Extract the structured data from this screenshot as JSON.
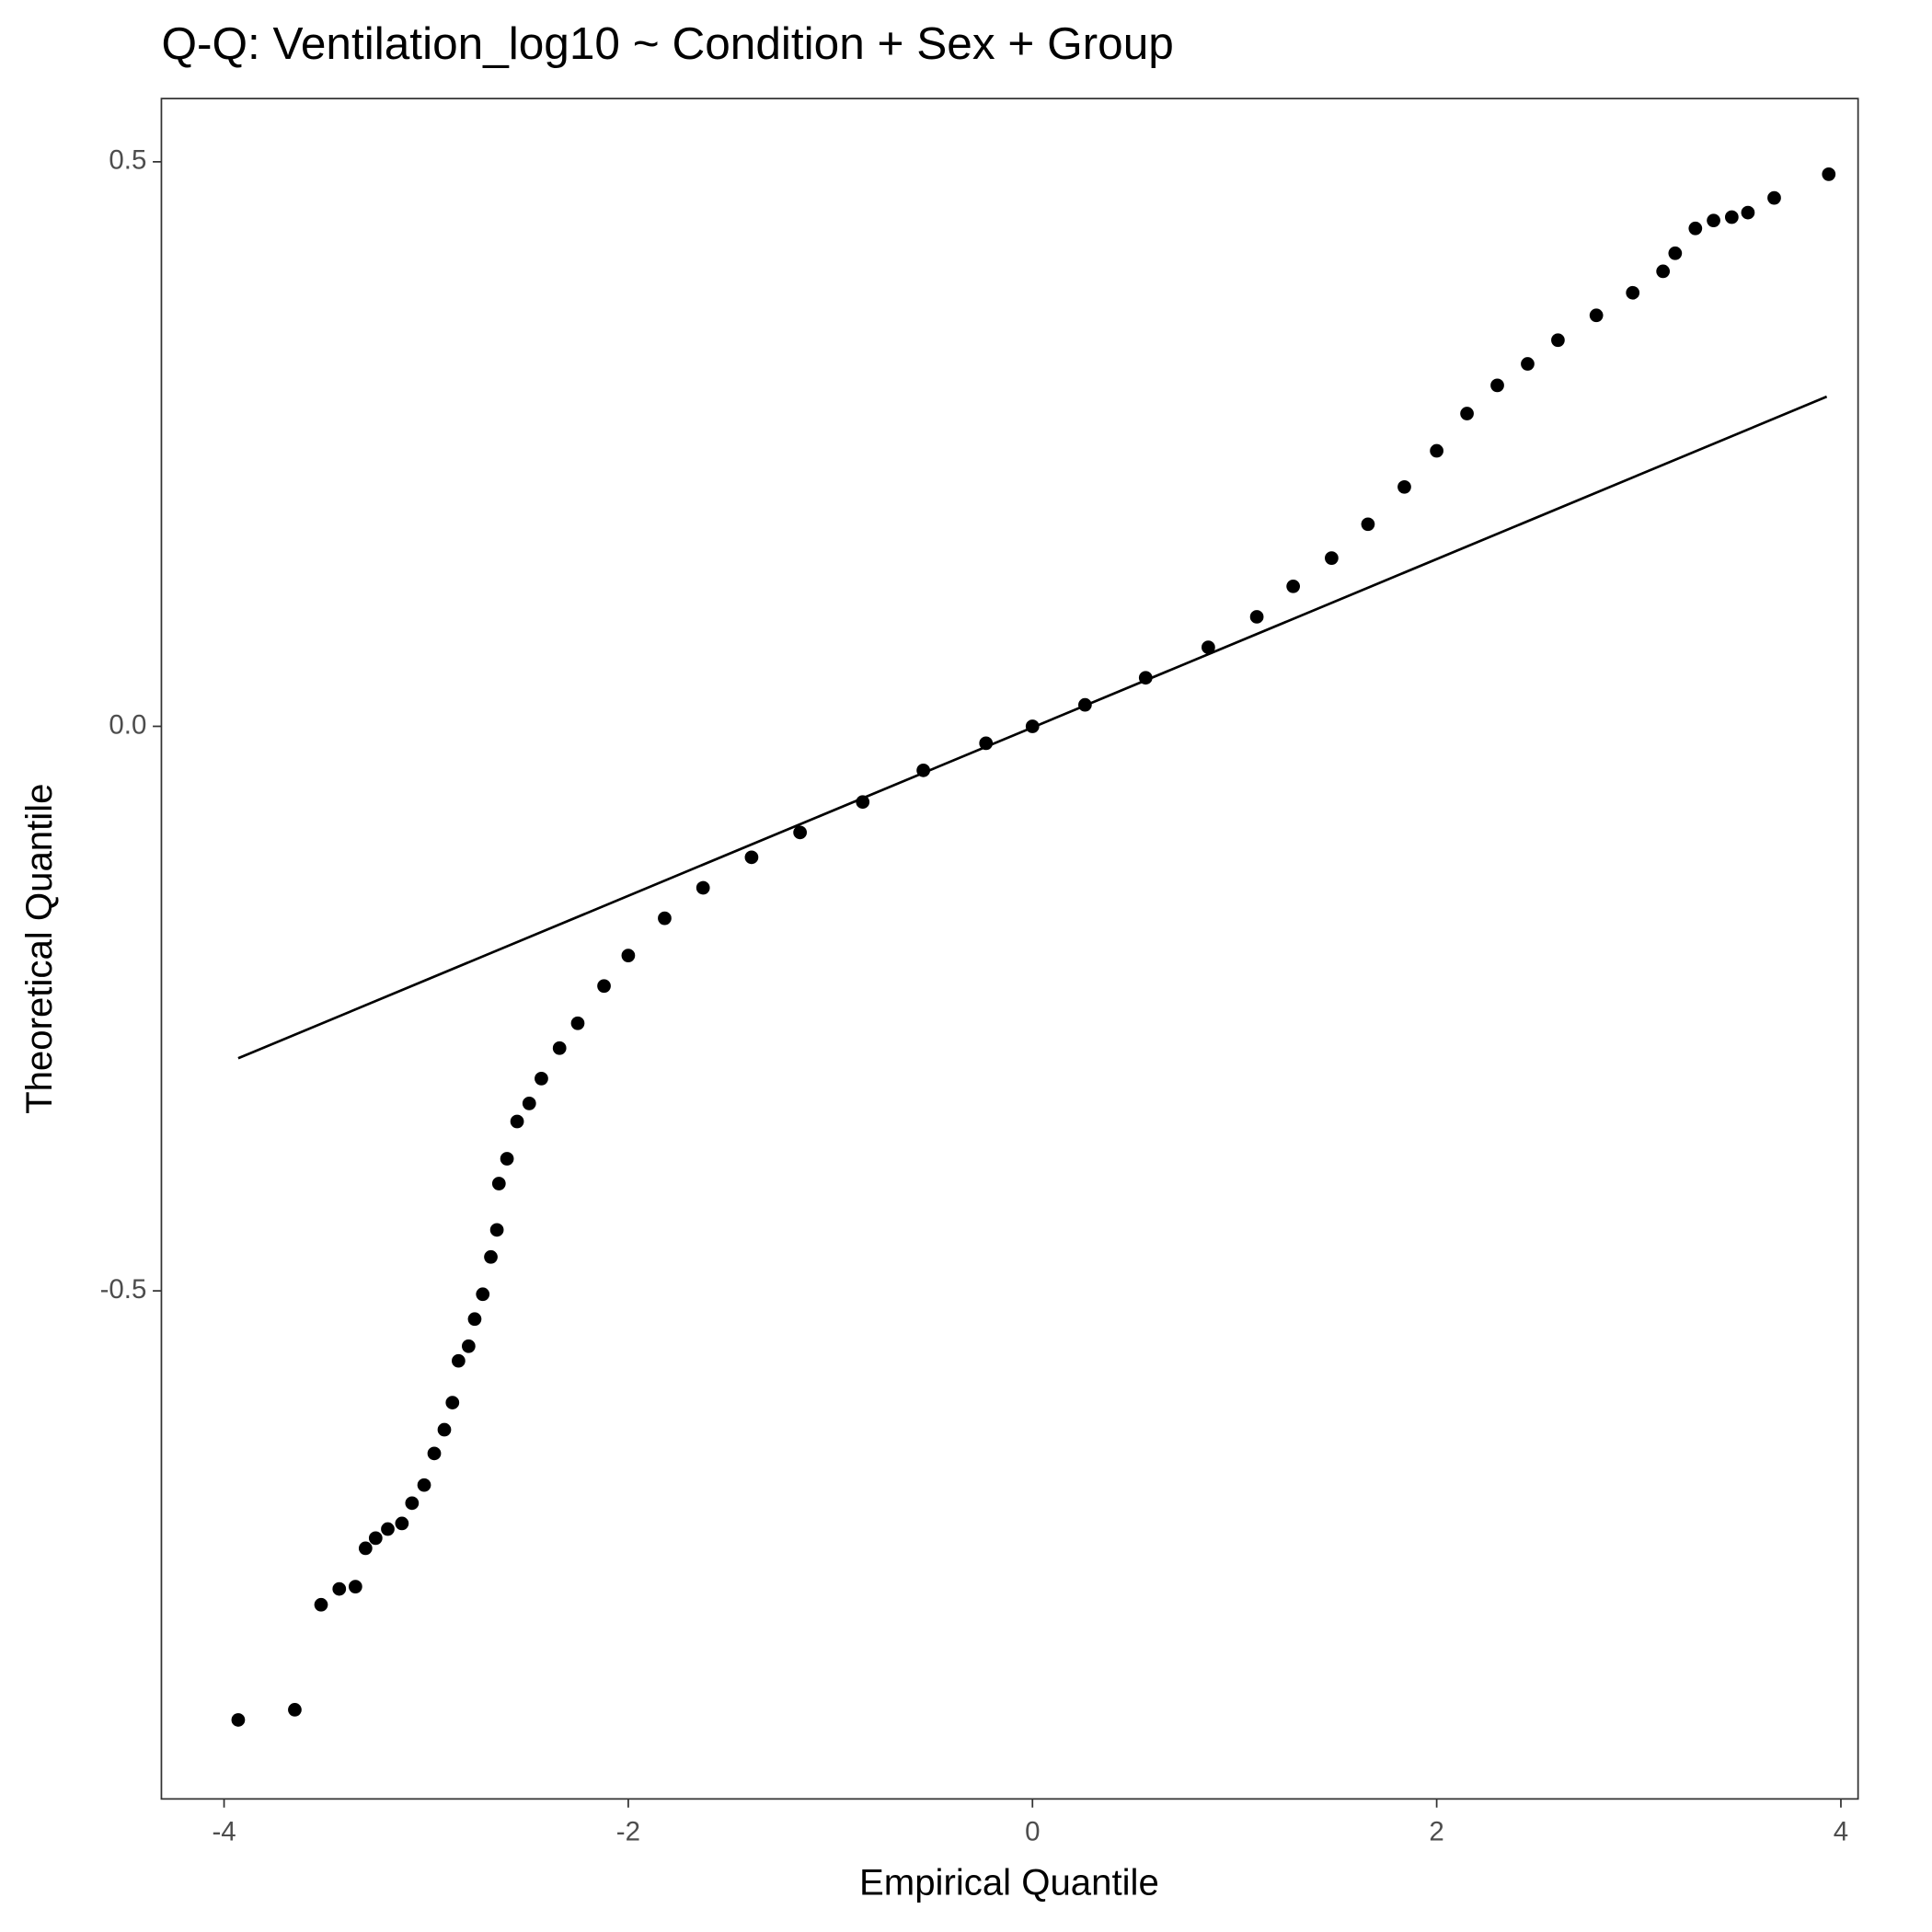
{
  "chart_data": {
    "type": "scatter",
    "title": "Q-Q: Ventilation_log10 ~ Condition + Sex + Group",
    "x_label": "Empirical Quantile",
    "y_label": "Theoretical Quantile",
    "color": "#000000",
    "grid": false,
    "xlim": [
      -4.31,
      4.085
    ],
    "ylim": [
      -0.95,
      0.556
    ],
    "xticks": [
      -4,
      -2,
      0,
      2,
      4
    ],
    "yticks": [
      -0.5,
      {
        "value": 0,
        "label": "0.0"
      },
      0.5
    ],
    "x": [
      -3.93,
      -3.65,
      -3.52,
      -3.43,
      -3.35,
      -3.3,
      -3.25,
      -3.19,
      -3.12,
      -3.07,
      -3.01,
      -2.96,
      -2.91,
      -2.87,
      -2.84,
      -2.79,
      -2.76,
      -2.72,
      -2.68,
      -2.65,
      -2.64,
      -2.6,
      -2.55,
      -2.49,
      -2.43,
      -2.34,
      -2.25,
      -2.12,
      -2.0,
      -1.82,
      -1.63,
      -1.39,
      -1.15,
      -0.84,
      -0.54,
      -0.23,
      0,
      0.26,
      0.56,
      0.87,
      1.11,
      1.29,
      1.48,
      1.66,
      1.84,
      2.0,
      2.15,
      2.3,
      2.45,
      2.6,
      2.79,
      2.97,
      3.12,
      3.18,
      3.28,
      3.37,
      3.46,
      3.54,
      3.67,
      3.94
    ],
    "y": [
      -0.88,
      -0.871,
      -0.778,
      -0.764,
      -0.762,
      -0.728,
      -0.719,
      -0.711,
      -0.706,
      -0.688,
      -0.672,
      -0.644,
      -0.623,
      -0.599,
      -0.562,
      -0.549,
      -0.525,
      -0.503,
      -0.47,
      -0.446,
      -0.405,
      -0.383,
      -0.35,
      -0.334,
      -0.312,
      -0.285,
      -0.263,
      -0.23,
      -0.203,
      -0.17,
      -0.143,
      -0.116,
      -0.094,
      -0.067,
      -0.039,
      -0.015,
      0,
      0.019,
      0.043,
      0.07,
      0.097,
      0.124,
      0.149,
      0.179,
      0.212,
      0.244,
      0.277,
      0.302,
      0.321,
      0.342,
      0.364,
      0.384,
      0.403,
      0.419,
      0.441,
      0.448,
      0.451,
      0.455,
      0.468,
      0.489
    ],
    "line": {
      "x": [
        -3.93,
        3.93
      ],
      "y": [
        -0.294,
        0.292
      ]
    }
  }
}
